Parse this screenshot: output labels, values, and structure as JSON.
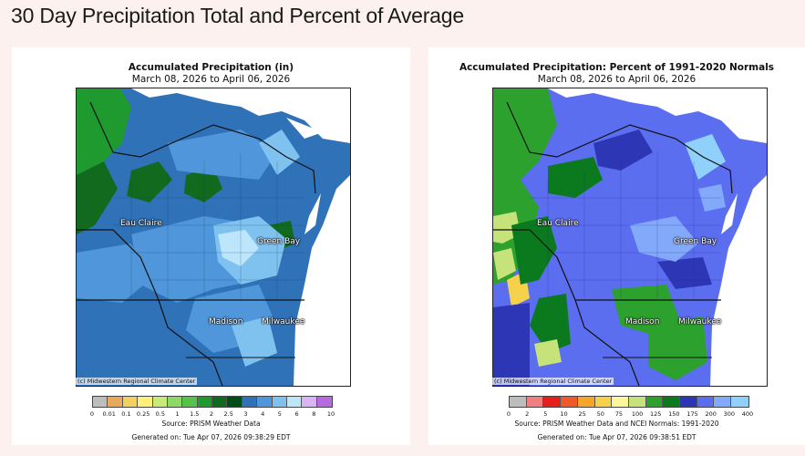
{
  "page": {
    "title": "30 Day Precipitation Total and Percent of Average"
  },
  "left_panel": {
    "title": "Accumulated Precipitation (in)",
    "subtitle": "March 08, 2026 to April 06, 2026",
    "credit": "(c) Midwestern Regional Climate Center",
    "cities": [
      "Eau Claire",
      "Green Bay",
      "Madison",
      "Milwaukee"
    ],
    "legend": {
      "colors": [
        "#bdbdbd",
        "#e8a95b",
        "#f2d25c",
        "#fff07a",
        "#c8ea7a",
        "#8ed868",
        "#55c24a",
        "#1f9a2f",
        "#116a1e",
        "#004d17",
        "#2f72b8",
        "#4f97da",
        "#7fc2ef",
        "#bde6fb",
        "#d9b4f2",
        "#b66be0"
      ],
      "ticks": [
        "0",
        "0.01",
        "0.1",
        "0.25",
        "0.5",
        "1",
        "1.5",
        "2",
        "2.5",
        "3",
        "4",
        "5",
        "6",
        "8",
        "10"
      ]
    },
    "source": "Source: PRISM Weather Data",
    "generated": "Generated on: Tue Apr 07, 2026 09:38:29 EDT"
  },
  "right_panel": {
    "title": "Accumulated Precipitation: Percent of 1991-2020 Normals",
    "subtitle": "March 08, 2026 to April 06, 2026",
    "credit": "(c) Midwestern Regional Climate Center",
    "cities": [
      "Eau Claire",
      "Green Bay",
      "Madison",
      "Milwaukee"
    ],
    "legend": {
      "colors": [
        "#bdbdbd",
        "#f08080",
        "#e81d1d",
        "#f05a28",
        "#f7a52b",
        "#f6d14b",
        "#fbf59b",
        "#c6e27b",
        "#2da12d",
        "#0b7a1e",
        "#2d37b5",
        "#5b6ef0",
        "#83a9fb",
        "#8fd1fb"
      ],
      "ticks": [
        "0",
        "2",
        "5",
        "10",
        "25",
        "50",
        "75",
        "100",
        "125",
        "150",
        "175",
        "200",
        "300",
        "400"
      ]
    },
    "source": "Source: PRISM Weather Data and NCEI Normals: 1991-2020",
    "generated": "Generated on: Tue Apr 07, 2026 09:38:51 EDT"
  }
}
